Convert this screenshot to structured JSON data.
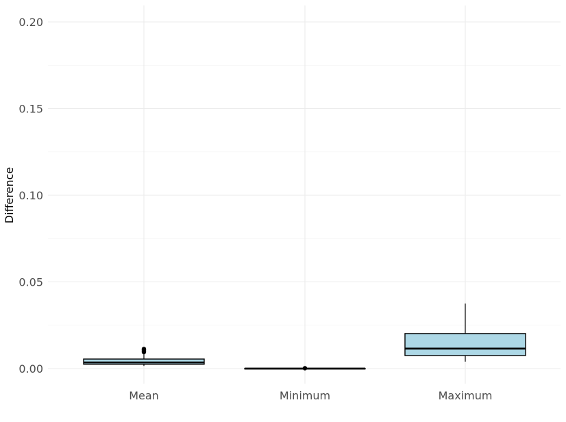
{
  "chart_data": {
    "type": "boxplot",
    "title": "",
    "xlabel": "",
    "ylabel": "Difference",
    "ylim": [
      0,
      0.2
    ],
    "y_ticks": [
      "0.00",
      "0.05",
      "0.10",
      "0.15",
      "0.20"
    ],
    "grid": true,
    "legend": "none",
    "colors": {
      "box_fill": "#add8e6",
      "box_stroke": "#000000",
      "grid": "#ebebeb"
    },
    "categories": [
      "Mean",
      "Minimum",
      "Maximum"
    ],
    "boxes": [
      {
        "category": "Mean",
        "min": 0.0015,
        "q1": 0.0025,
        "median": 0.0035,
        "q3": 0.0055,
        "max": 0.0085,
        "outliers": [
          0.0095,
          0.0102,
          0.0108,
          0.0113
        ]
      },
      {
        "category": "Minimum",
        "min": 0.0,
        "q1": 0.0,
        "median": 0.0,
        "q3": 0.0,
        "max": 0.0,
        "outliers": [
          0.0002
        ]
      },
      {
        "category": "Maximum",
        "min": 0.004,
        "q1": 0.0075,
        "median": 0.0115,
        "q3": 0.0202,
        "max": 0.0375,
        "outliers": []
      }
    ]
  }
}
